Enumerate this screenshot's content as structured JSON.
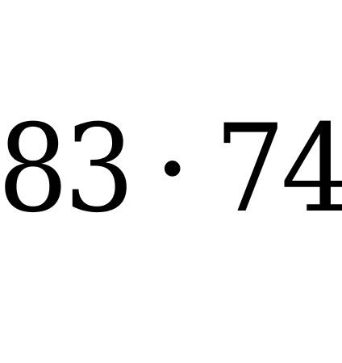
{
  "expression": {
    "left_operand": "83",
    "operator": "·",
    "right_operand": "74"
  }
}
